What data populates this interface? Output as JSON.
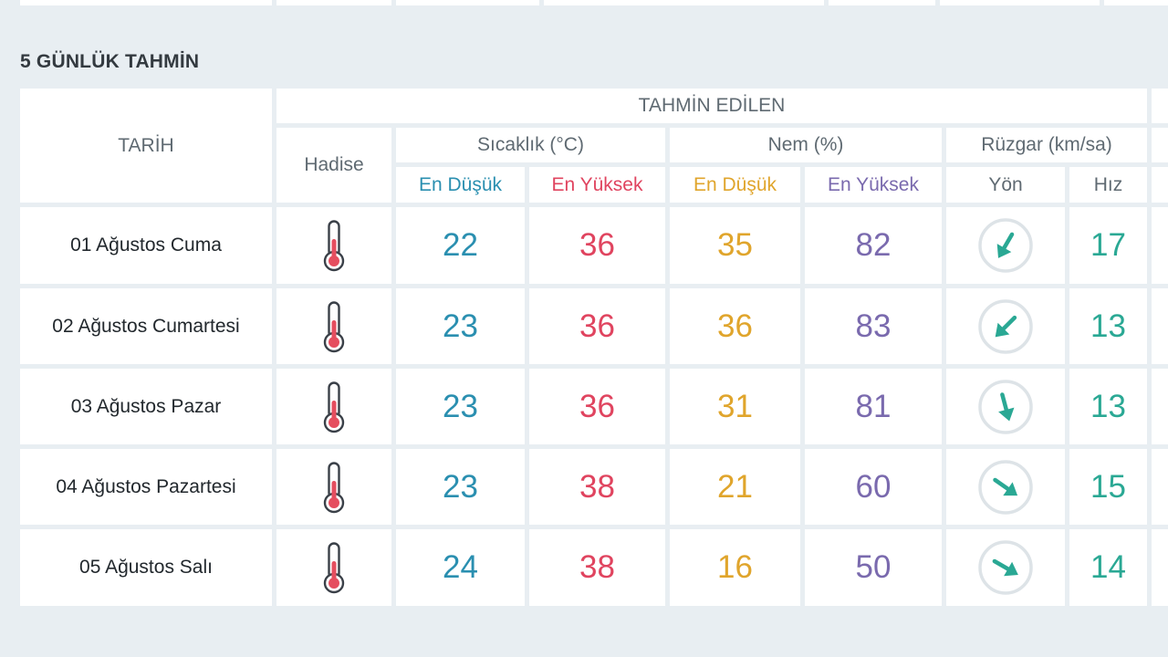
{
  "section": {
    "title": "5 GÜNLÜK TAHMİN"
  },
  "header": {
    "date": "TARİH",
    "forecast": "TAHMİN EDİLEN",
    "event": "Hadise",
    "temperature": "Sıcaklık (°C)",
    "humidity": "Nem (%)",
    "wind": "Rüzgar (km/sa)",
    "temp_min": "En Düşük",
    "temp_max": "En Yüksek",
    "hum_min": "En Düşük",
    "hum_max": "En Yüksek",
    "wind_dir": "Yön",
    "wind_speed": "Hız"
  },
  "colors": {
    "temp_min": "#2a8fb0",
    "temp_max": "#e0445f",
    "hum_min": "#e0a52c",
    "hum_max": "#7a6aae",
    "wind_speed": "#2aa894",
    "wind_arrow": "#2aa894"
  },
  "rows": [
    {
      "date": "01 Ağustos Cuma",
      "event_icon": "thermometer-hot-icon",
      "temp_min": "22",
      "temp_max": "36",
      "hum_min": "35",
      "hum_max": "82",
      "wind_dir_deg": 210,
      "wind_speed": "17"
    },
    {
      "date": "02 Ağustos Cumartesi",
      "event_icon": "thermometer-hot-icon",
      "temp_min": "23",
      "temp_max": "36",
      "hum_min": "36",
      "hum_max": "83",
      "wind_dir_deg": 225,
      "wind_speed": "13"
    },
    {
      "date": "03 Ağustos Pazar",
      "event_icon": "thermometer-hot-icon",
      "temp_min": "23",
      "temp_max": "36",
      "hum_min": "31",
      "hum_max": "81",
      "wind_dir_deg": 165,
      "wind_speed": "13"
    },
    {
      "date": "04 Ağustos Pazartesi",
      "event_icon": "thermometer-hot-icon",
      "temp_min": "23",
      "temp_max": "38",
      "hum_min": "21",
      "hum_max": "60",
      "wind_dir_deg": 125,
      "wind_speed": "15"
    },
    {
      "date": "05 Ağustos Salı",
      "event_icon": "thermometer-hot-icon",
      "temp_min": "24",
      "temp_max": "38",
      "hum_min": "16",
      "hum_max": "50",
      "wind_dir_deg": 120,
      "wind_speed": "14"
    }
  ]
}
